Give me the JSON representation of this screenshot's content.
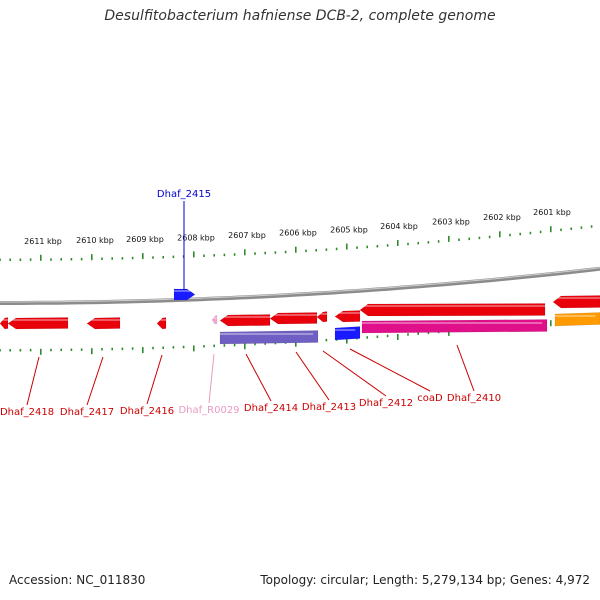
{
  "title": "Desulfitobacterium hafniense DCB-2, complete genome",
  "footer": {
    "accession": "Accession: NC_011830",
    "topology": "Topology: circular; Length: 5,279,134 bp; Genes: 4,972"
  },
  "colors": {
    "backbone": "#8c8c8c",
    "tick": "#2e8b2e",
    "gene_red": "#e8000b",
    "gene_blue": "#1a1aff",
    "gene_purple": "#6f5fc2",
    "gene_magenta": "#e0108a",
    "gene_orange": "#ff9a00",
    "gene_pink": "#f4a6d0",
    "label_red": "#cc0000",
    "label_blue": "#0000cc",
    "label_pink": "#e89ac2"
  },
  "scale_labels": [
    "2611 kbp",
    "2610 kbp",
    "2609 kbp",
    "2608 kbp",
    "2607 kbp",
    "2606 kbp",
    "2605 kbp",
    "2604 kbp",
    "2603 kbp",
    "2602 kbp",
    "2601 kbp"
  ],
  "top_labels": [
    {
      "text": "Dhaf_2415",
      "color": "blue"
    }
  ],
  "bottom_labels": [
    {
      "text": "Dhaf_2418",
      "color": "red"
    },
    {
      "text": "Dhaf_2417",
      "color": "red"
    },
    {
      "text": "Dhaf_2416",
      "color": "red"
    },
    {
      "text": "Dhaf_R0029",
      "color": "pink"
    },
    {
      "text": "Dhaf_2414",
      "color": "red"
    },
    {
      "text": "Dhaf_2413",
      "color": "red"
    },
    {
      "text": "Dhaf_2412",
      "color": "red"
    },
    {
      "text": "coaD",
      "color": "red"
    },
    {
      "text": "Dhaf_2410",
      "color": "red"
    }
  ],
  "genes": [
    {
      "row": "top",
      "color": "gene_blue"
    },
    {
      "row": "minus",
      "color": "gene_red"
    },
    {
      "row": "minus",
      "color": "gene_red"
    },
    {
      "row": "minus",
      "color": "gene_red"
    },
    {
      "row": "minus",
      "color": "gene_red"
    },
    {
      "row": "minus",
      "color": "gene_pink"
    },
    {
      "row": "minus",
      "color": "gene_red"
    },
    {
      "row": "minus",
      "color": "gene_red"
    },
    {
      "row": "minus",
      "color": "gene_red"
    },
    {
      "row": "minus",
      "color": "gene_red"
    },
    {
      "row": "minus",
      "color": "gene_red"
    },
    {
      "row": "minus",
      "color": "gene_red"
    },
    {
      "row": "inner",
      "color": "gene_purple"
    },
    {
      "row": "inner",
      "color": "gene_blue"
    },
    {
      "row": "inner",
      "color": "gene_magenta"
    },
    {
      "row": "inner",
      "color": "gene_orange"
    }
  ]
}
